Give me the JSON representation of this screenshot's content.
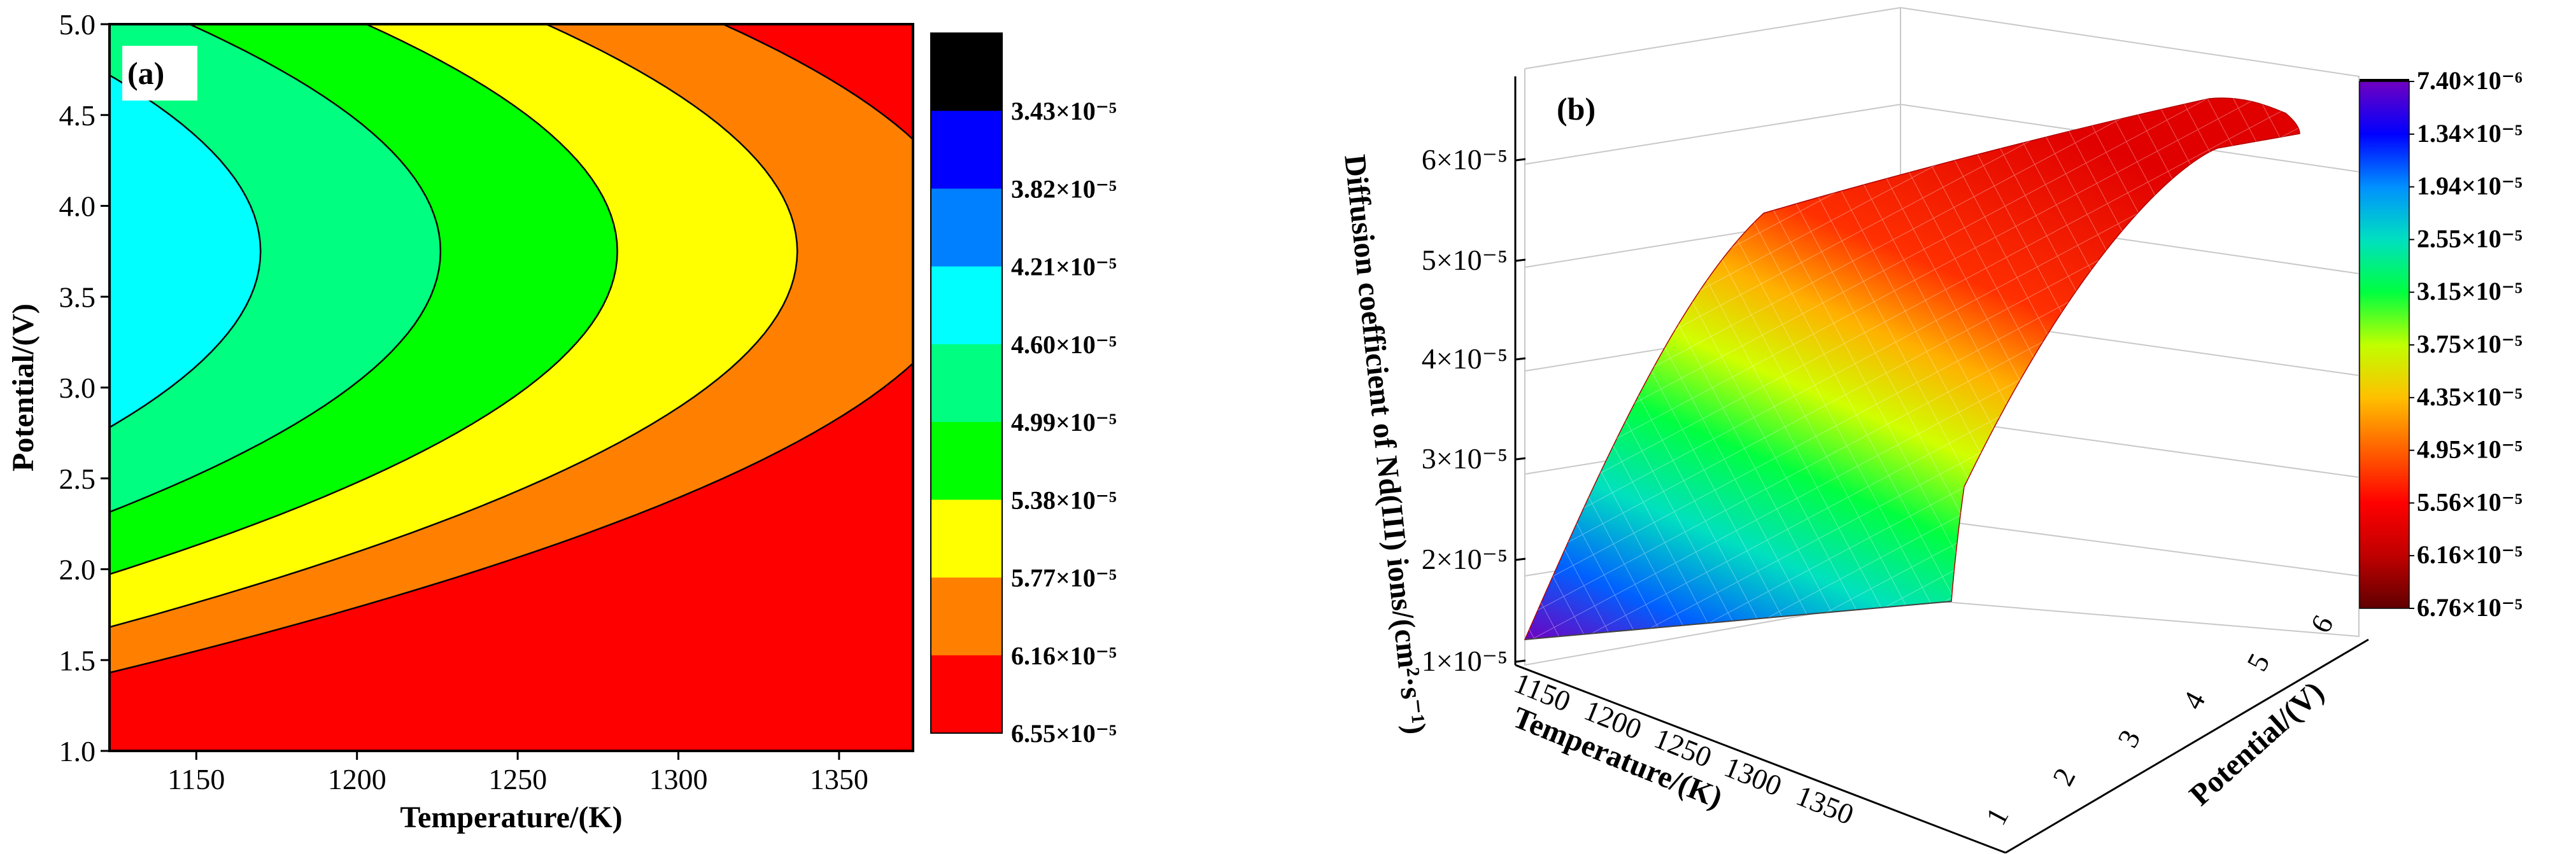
{
  "chart_data": [
    {
      "type": "contour",
      "panel_label": "(a)",
      "xlabel": "Temperature/(K)",
      "ylabel": "Potential/(V)",
      "xlim": [
        1123,
        1373
      ],
      "ylim": [
        1.0,
        5.0
      ],
      "x_ticks": [
        "1150",
        "1200",
        "1250",
        "1300",
        "1350"
      ],
      "y_ticks": [
        "1.0",
        "1.5",
        "2.0",
        "2.5",
        "3.0",
        "3.5",
        "4.0",
        "4.5",
        "5.0"
      ],
      "colorbar": {
        "levels": [
          "3.43×10⁻⁵",
          "3.82×10⁻⁵",
          "4.21×10⁻⁵",
          "4.60×10⁻⁵",
          "4.99×10⁻⁵",
          "5.38×10⁻⁵",
          "5.77×10⁻⁵",
          "6.16×10⁻⁵",
          "6.55×10⁻⁵"
        ],
        "colors": [
          "#000000",
          "#0000ff",
          "#0080ff",
          "#00ffff",
          "#00ff80",
          "#00ff00",
          "#ffff00",
          "#ff8000",
          "#ff0000"
        ]
      }
    },
    {
      "type": "surface",
      "panel_label": "(b)",
      "zlabel": "Diffusion coefficient of Nd(III) ions/(cm²·s⁻¹)",
      "xlabel": "Temperature/(K)",
      "ylabel": "Potential/(V)",
      "z_ticks": [
        "1×10⁻⁵",
        "2×10⁻⁵",
        "3×10⁻⁵",
        "4×10⁻⁵",
        "5×10⁻⁵",
        "6×10⁻⁵"
      ],
      "x_ticks": [
        "1150",
        "1200",
        "1250",
        "1300",
        "1350"
      ],
      "y_ticks": [
        "1",
        "2",
        "3",
        "4",
        "5",
        "6"
      ],
      "colorbar": {
        "labels": [
          "7.40×10⁻⁶",
          "1.34×10⁻⁵",
          "1.94×10⁻⁵",
          "2.55×10⁻⁵",
          "3.15×10⁻⁵",
          "3.75×10⁻⁵",
          "4.35×10⁻⁵",
          "4.95×10⁻⁵",
          "5.56×10⁻⁵",
          "6.16×10⁻⁵",
          "6.76×10⁻⁵"
        ],
        "colors": [
          "#7000c0",
          "#0000ff",
          "#0090ff",
          "#00e0c0",
          "#00ff40",
          "#c0ff00",
          "#ffc000",
          "#ff6000",
          "#ff0000",
          "#c00000",
          "#600000"
        ]
      }
    }
  ]
}
